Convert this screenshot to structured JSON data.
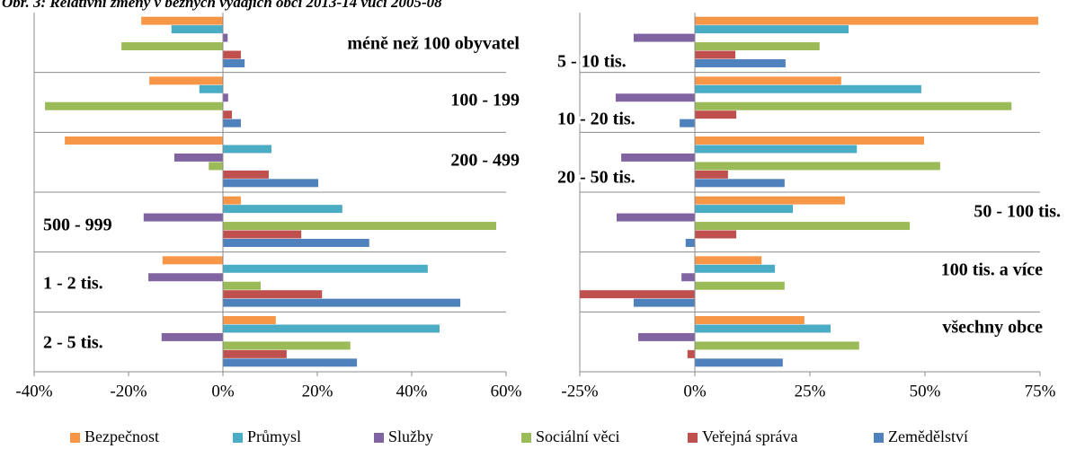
{
  "title": "Obr. 3: Relativní změny v běžných výdajích obcí 2013-14 vůči 2005-08",
  "chart_data": [
    {
      "type": "bar",
      "orientation": "horizontal",
      "categories": [
        "méně než 100 obyvatel",
        "100 - 199",
        "200 - 499",
        "500 - 999",
        "1 - 2 tis.",
        "2 - 5 tis."
      ],
      "series": [
        {
          "name": "Bezpečnost",
          "color": "#f79646",
          "values": [
            -17.3,
            -15.6,
            -33.5,
            3.8,
            -12.8,
            11.2
          ]
        },
        {
          "name": "Průmysl",
          "color": "#4bacc6",
          "values": [
            -10.9,
            -5.0,
            10.3,
            25.3,
            43.4,
            45.9
          ]
        },
        {
          "name": "Služby",
          "color": "#8064a2",
          "values": [
            1.0,
            1.1,
            -10.3,
            -16.8,
            -15.8,
            -13.0
          ]
        },
        {
          "name": "Sociální věci",
          "color": "#9bbb59",
          "values": [
            -21.5,
            -37.7,
            -3.0,
            57.9,
            8.0,
            27.0
          ]
        },
        {
          "name": "Veřejná správa",
          "color": "#c0504d",
          "values": [
            3.8,
            1.9,
            9.7,
            16.6,
            21.0,
            13.5
          ]
        },
        {
          "name": "Zemědělství",
          "color": "#4f81bd",
          "values": [
            4.6,
            3.8,
            20.2,
            31.0,
            50.3,
            28.4
          ]
        }
      ],
      "xlim": [
        -40,
        60
      ],
      "xticks": [
        {
          "value": -40,
          "label": "-40%"
        },
        {
          "value": -20,
          "label": "-20%"
        },
        {
          "value": 0,
          "label": "0%"
        },
        {
          "value": 20,
          "label": "20%"
        },
        {
          "value": 40,
          "label": "40%"
        },
        {
          "value": 60,
          "label": "60%"
        }
      ]
    },
    {
      "type": "bar",
      "orientation": "horizontal",
      "categories": [
        "5 - 10 tis.",
        "10 - 20 tis.",
        "20 - 50 tis.",
        "50 - 100 tis.",
        "100 tis. a více",
        "všechny obce"
      ],
      "series": [
        {
          "color": "#f79646",
          "values": [
            74.6,
            31.8,
            49.8,
            32.6,
            14.5,
            23.8
          ]
        },
        {
          "color": "#4bacc6",
          "values": [
            33.4,
            49.2,
            35.2,
            21.3,
            17.4,
            29.5
          ]
        },
        {
          "color": "#8064a2",
          "values": [
            -13.3,
            -17.2,
            -16.0,
            -17.0,
            -2.9,
            -12.3
          ]
        },
        {
          "color": "#9bbb59",
          "values": [
            27.1,
            68.8,
            53.3,
            46.7,
            19.5,
            35.7
          ]
        },
        {
          "color": "#c0504d",
          "values": [
            8.8,
            9.0,
            7.2,
            9.0,
            -25.0,
            -1.6
          ]
        },
        {
          "color": "#4f81bd",
          "values": [
            19.7,
            -3.3,
            19.5,
            -2.0,
            -13.3,
            19.1
          ]
        }
      ],
      "xlim": [
        -25,
        75
      ],
      "xticks": [
        {
          "value": -25,
          "label": "-25%"
        },
        {
          "value": 0,
          "label": "0%"
        },
        {
          "value": 25,
          "label": "25%"
        },
        {
          "value": 50,
          "label": "50%"
        },
        {
          "value": 75,
          "label": "75%"
        }
      ]
    }
  ]
}
